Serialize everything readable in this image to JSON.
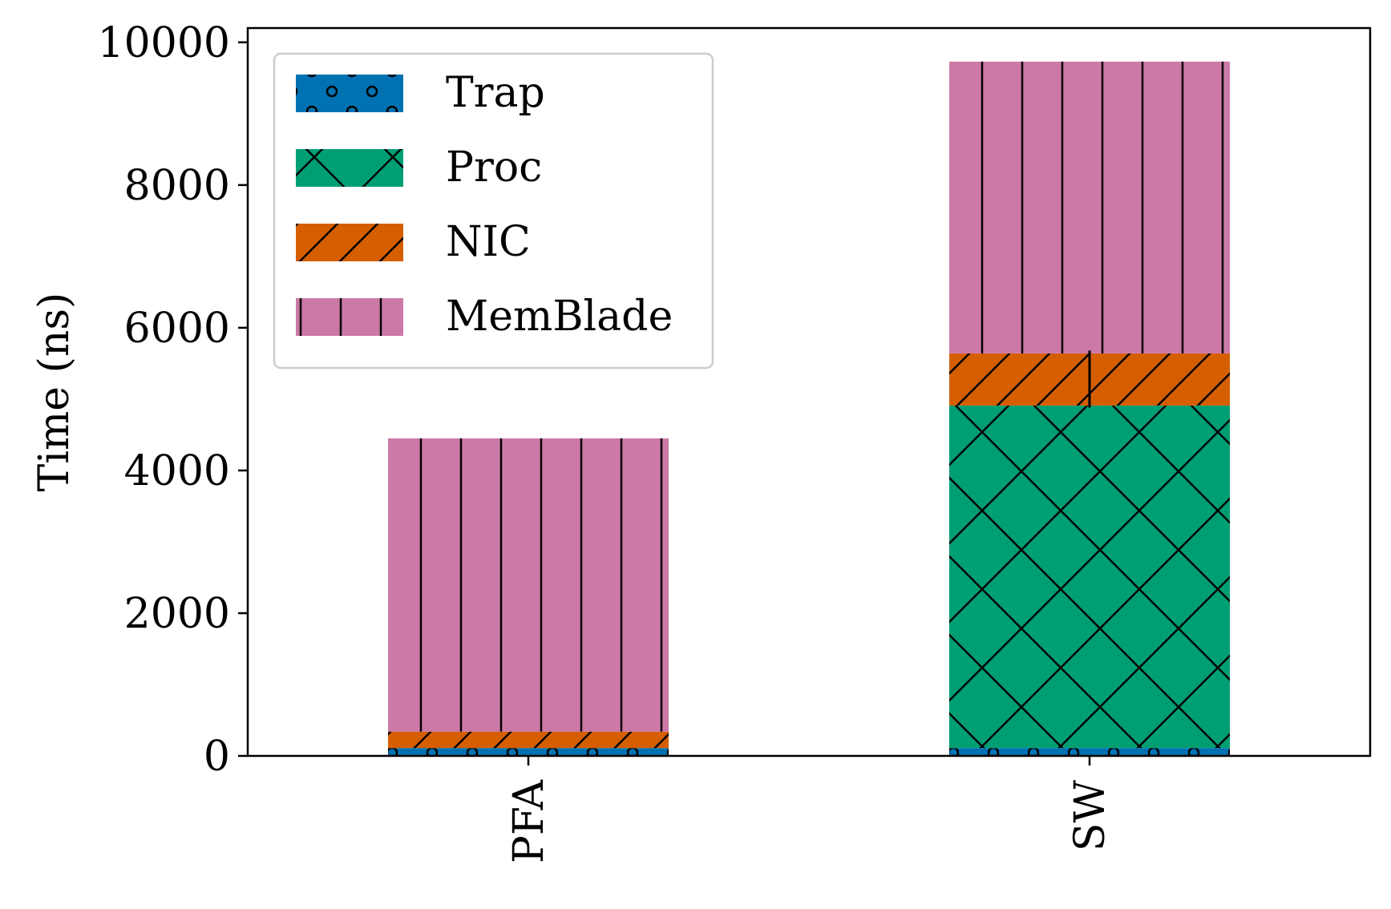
{
  "chart_data": {
    "type": "bar",
    "stacked": true,
    "categories": [
      "PFA",
      "SW"
    ],
    "series": [
      {
        "name": "Trap",
        "values": [
          110,
          110
        ],
        "color": "#0072b2",
        "hatch": "circles"
      },
      {
        "name": "Proc",
        "values": [
          0,
          4800
        ],
        "color": "#009e73",
        "hatch": "crosshatch"
      },
      {
        "name": "NIC",
        "values": [
          230,
          730
        ],
        "color": "#d55e00",
        "hatch": "diagonal"
      },
      {
        "name": "MemBlade",
        "values": [
          4110,
          4090
        ],
        "color": "#cc79a7",
        "hatch": "vertical"
      }
    ],
    "error_bars": [
      {
        "category": "SW",
        "at": 5280,
        "minus": 400,
        "plus": 400
      }
    ],
    "title": "",
    "xlabel": "",
    "ylabel": "Time (ns)",
    "ylim": [
      0,
      10200
    ],
    "yticks": [
      "0",
      "2000",
      "4000",
      "6000",
      "8000",
      "10000"
    ],
    "x_tick_rotation": "vertical",
    "grid": false,
    "legend": {
      "position": "upper-left",
      "entries": [
        "Trap",
        "Proc",
        "NIC",
        "MemBlade"
      ]
    }
  }
}
